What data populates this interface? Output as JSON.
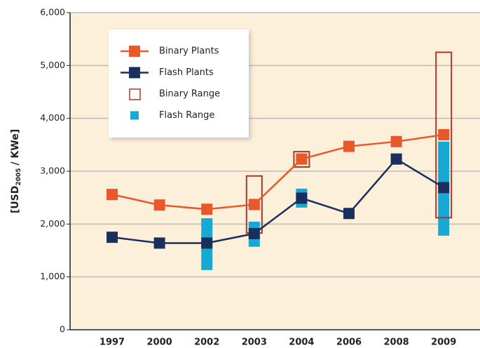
{
  "chart_data": {
    "type": "line",
    "y_label_parts": [
      "[USD",
      "2005",
      "/ KWe]"
    ],
    "categories": [
      "1997",
      "2000",
      "2002",
      "2003",
      "2004",
      "2006",
      "2008",
      "2009"
    ],
    "series": [
      {
        "name": "Binary Plants",
        "color": "#e8582a",
        "values": [
          2560,
          2360,
          2280,
          2370,
          3230,
          3470,
          3560,
          3690
        ]
      },
      {
        "name": "Flash Plants",
        "color": "#1b2f5e",
        "values": [
          1750,
          1640,
          1640,
          1820,
          2490,
          2200,
          3230,
          2690
        ]
      }
    ],
    "ranges": [
      {
        "name": "Binary Range",
        "color": "#a53a2b",
        "style": "outline",
        "low": [
          null,
          null,
          null,
          1830,
          3080,
          null,
          null,
          2120
        ],
        "high": [
          null,
          null,
          null,
          2910,
          3370,
          null,
          null,
          5250
        ]
      },
      {
        "name": "Flash Range",
        "color": "#16a9d6",
        "style": "filled",
        "low": [
          null,
          null,
          1130,
          1570,
          2310,
          null,
          null,
          1780
        ],
        "high": [
          null,
          null,
          2110,
          2045,
          2670,
          null,
          null,
          3560
        ]
      }
    ],
    "ylim": [
      0,
      6000
    ],
    "yticks": [
      0,
      {
        "value": 1000,
        "label": "1,000"
      },
      {
        "value": 2000,
        "label": "2,000"
      },
      {
        "value": 3000,
        "label": "3,000"
      },
      {
        "value": 4000,
        "label": "4,000"
      },
      {
        "value": 5000,
        "label": "5,000"
      },
      {
        "value": 6000,
        "label": "6,000"
      }
    ],
    "grid": true,
    "legend": "upper left"
  }
}
